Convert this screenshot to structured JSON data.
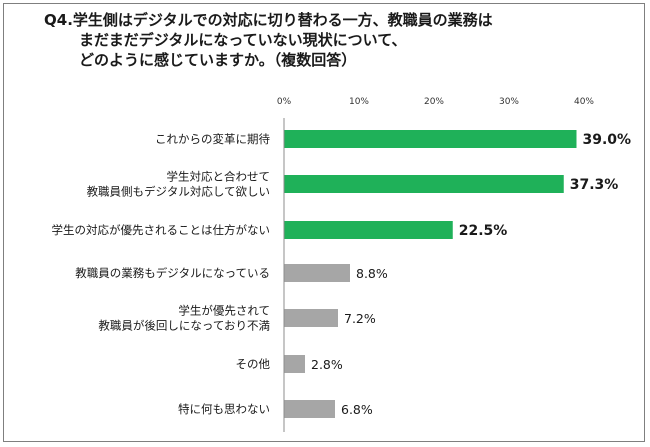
{
  "title_lines": [
    "Q4.学生側はデジタルでの対応に切り替わる一方、教職員の業務は",
    "まだまだデジタルになっていない現状について、",
    "どのように感じていますか。（複数回答）"
  ],
  "chart_data": {
    "type": "bar",
    "orientation": "horizontal",
    "title": "Q4.学生側はデジタルでの対応に切り替わる一方、教職員の業務はまだまだデジタルになっていない現状について、どのように感じていますか。（複数回答）",
    "categories": [
      [
        "これからの変革に期待"
      ],
      [
        "学生対応と合わせて",
        "教職員側もデジタル対応して欲しい"
      ],
      [
        "学生の対応が優先されることは仕方がない"
      ],
      [
        "教職員の業務もデジタルになっている"
      ],
      [
        "学生が優先されて",
        "教職員が後回しになっており不満"
      ],
      [
        "その他"
      ],
      [
        "特に何も思わない"
      ]
    ],
    "values": [
      39.0,
      37.3,
      22.5,
      8.8,
      7.2,
      2.8,
      6.8
    ],
    "value_labels": [
      "39.0%",
      "37.3%",
      "22.5%",
      "8.8%",
      "7.2%",
      "2.8%",
      "6.8%"
    ],
    "highlight": [
      true,
      true,
      true,
      false,
      false,
      false,
      false
    ],
    "xlim": [
      0,
      40
    ],
    "xticks": [
      "0%",
      "10%",
      "20%",
      "30%",
      "40%"
    ],
    "grid": false,
    "colors": {
      "highlight": "#1fb159",
      "other": "#a6a6a6",
      "axis": "#8c8c8c"
    }
  }
}
